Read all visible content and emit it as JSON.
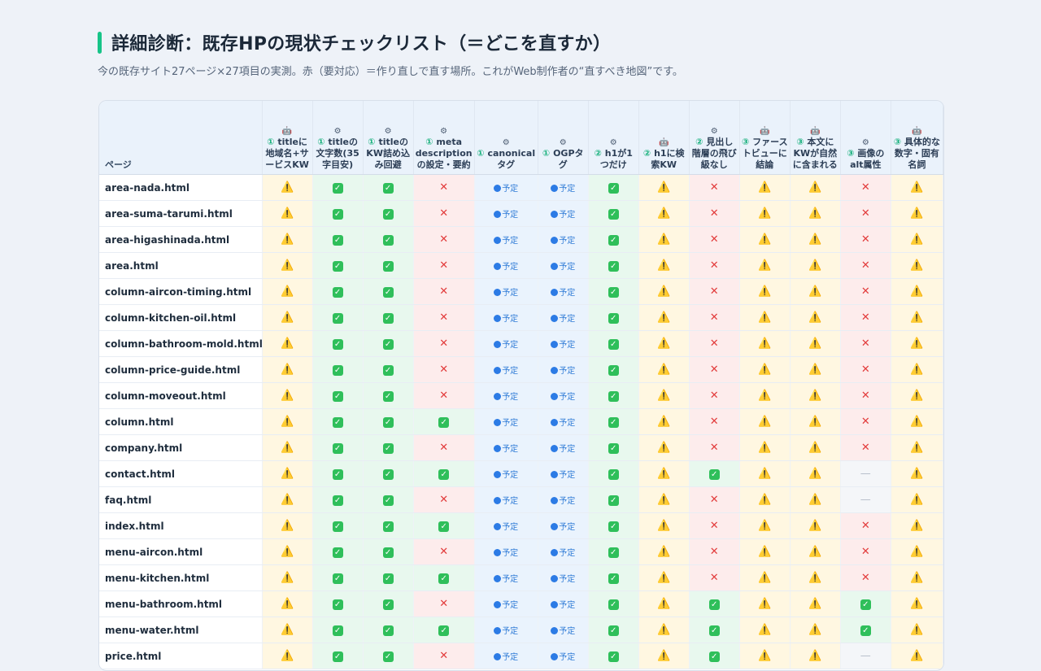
{
  "title": "詳細診断：既存HPの現状チェックリスト（＝どこを直すか）",
  "subtitle": "今の既存サイト27ページ×27項目の実測。赤（要対応）＝作り直しで直す場所。これがWeb制作者の“直すべき地図”です。",
  "table": {
    "page_header": "ページ",
    "columns": [
      {
        "icon": "🤖",
        "num": "①",
        "label": "titleに地域名+サービスKW"
      },
      {
        "icon": "⚙",
        "num": "①",
        "label": "titleの文字数(35字目安)"
      },
      {
        "icon": "⚙",
        "num": "①",
        "label": "titleのKW詰め込み回避"
      },
      {
        "icon": "⚙",
        "num": "①",
        "label": "meta descriptionの設定・要約"
      },
      {
        "icon": "⚙",
        "num": "①",
        "label": "canonicalタグ"
      },
      {
        "icon": "⚙",
        "num": "①",
        "label": "OGPタグ"
      },
      {
        "icon": "⚙",
        "num": "②",
        "label": "h1が1つだけ"
      },
      {
        "icon": "🤖",
        "num": "②",
        "label": "h1に検索KW"
      },
      {
        "icon": "⚙",
        "num": "②",
        "label": "見出し階層の飛び級なし"
      },
      {
        "icon": "🤖",
        "num": "③",
        "label": "ファーストビューに結論"
      },
      {
        "icon": "🤖",
        "num": "③",
        "label": "本文にKWが自然に含まれる"
      },
      {
        "icon": "⚙",
        "num": "③",
        "label": "画像のalt属性"
      },
      {
        "icon": "🤖",
        "num": "③",
        "label": "具体的な数字・固有名詞"
      }
    ],
    "status_symbols": {
      "warn": "⚠️",
      "ok": "✓",
      "ng": "✕",
      "plan": "予定",
      "na": "—"
    },
    "rows": [
      {
        "page": "area-nada.html",
        "s": [
          "warn",
          "ok",
          "ok",
          "ng",
          "plan",
          "plan",
          "ok",
          "warn",
          "ng",
          "warn",
          "warn",
          "ng",
          "warn"
        ]
      },
      {
        "page": "area-suma-tarumi.html",
        "s": [
          "warn",
          "ok",
          "ok",
          "ng",
          "plan",
          "plan",
          "ok",
          "warn",
          "ng",
          "warn",
          "warn",
          "ng",
          "warn"
        ]
      },
      {
        "page": "area-higashinada.html",
        "s": [
          "warn",
          "ok",
          "ok",
          "ng",
          "plan",
          "plan",
          "ok",
          "warn",
          "ng",
          "warn",
          "warn",
          "ng",
          "warn"
        ]
      },
      {
        "page": "area.html",
        "s": [
          "warn",
          "ok",
          "ok",
          "ng",
          "plan",
          "plan",
          "ok",
          "warn",
          "ng",
          "warn",
          "warn",
          "ng",
          "warn"
        ]
      },
      {
        "page": "column-aircon-timing.html",
        "s": [
          "warn",
          "ok",
          "ok",
          "ng",
          "plan",
          "plan",
          "ok",
          "warn",
          "ng",
          "warn",
          "warn",
          "ng",
          "warn"
        ]
      },
      {
        "page": "column-kitchen-oil.html",
        "s": [
          "warn",
          "ok",
          "ok",
          "ng",
          "plan",
          "plan",
          "ok",
          "warn",
          "ng",
          "warn",
          "warn",
          "ng",
          "warn"
        ]
      },
      {
        "page": "column-bathroom-mold.html",
        "s": [
          "warn",
          "ok",
          "ok",
          "ng",
          "plan",
          "plan",
          "ok",
          "warn",
          "ng",
          "warn",
          "warn",
          "ng",
          "warn"
        ]
      },
      {
        "page": "column-price-guide.html",
        "s": [
          "warn",
          "ok",
          "ok",
          "ng",
          "plan",
          "plan",
          "ok",
          "warn",
          "ng",
          "warn",
          "warn",
          "ng",
          "warn"
        ]
      },
      {
        "page": "column-moveout.html",
        "s": [
          "warn",
          "ok",
          "ok",
          "ng",
          "plan",
          "plan",
          "ok",
          "warn",
          "ng",
          "warn",
          "warn",
          "ng",
          "warn"
        ]
      },
      {
        "page": "column.html",
        "s": [
          "warn",
          "ok",
          "ok",
          "ok",
          "plan",
          "plan",
          "ok",
          "warn",
          "ng",
          "warn",
          "warn",
          "ng",
          "warn"
        ]
      },
      {
        "page": "company.html",
        "s": [
          "warn",
          "ok",
          "ok",
          "ng",
          "plan",
          "plan",
          "ok",
          "warn",
          "ng",
          "warn",
          "warn",
          "ng",
          "warn"
        ]
      },
      {
        "page": "contact.html",
        "s": [
          "warn",
          "ok",
          "ok",
          "ok",
          "plan",
          "plan",
          "ok",
          "warn",
          "ok",
          "warn",
          "warn",
          "na",
          "warn"
        ]
      },
      {
        "page": "faq.html",
        "s": [
          "warn",
          "ok",
          "ok",
          "ng",
          "plan",
          "plan",
          "ok",
          "warn",
          "ng",
          "warn",
          "warn",
          "na",
          "warn"
        ]
      },
      {
        "page": "index.html",
        "s": [
          "warn",
          "ok",
          "ok",
          "ok",
          "plan",
          "plan",
          "ok",
          "warn",
          "ng",
          "warn",
          "warn",
          "ng",
          "warn"
        ]
      },
      {
        "page": "menu-aircon.html",
        "s": [
          "warn",
          "ok",
          "ok",
          "ng",
          "plan",
          "plan",
          "ok",
          "warn",
          "ng",
          "warn",
          "warn",
          "ng",
          "warn"
        ]
      },
      {
        "page": "menu-kitchen.html",
        "s": [
          "warn",
          "ok",
          "ok",
          "ok",
          "plan",
          "plan",
          "ok",
          "warn",
          "ng",
          "warn",
          "warn",
          "ng",
          "warn"
        ]
      },
      {
        "page": "menu-bathroom.html",
        "s": [
          "warn",
          "ok",
          "ok",
          "ng",
          "plan",
          "plan",
          "ok",
          "warn",
          "ok",
          "warn",
          "warn",
          "ok",
          "warn"
        ]
      },
      {
        "page": "menu-water.html",
        "s": [
          "warn",
          "ok",
          "ok",
          "ok",
          "plan",
          "plan",
          "ok",
          "warn",
          "ok",
          "warn",
          "warn",
          "ok",
          "warn"
        ]
      },
      {
        "page": "price.html",
        "s": [
          "warn",
          "ok",
          "ok",
          "ng",
          "plan",
          "plan",
          "ok",
          "warn",
          "ok",
          "warn",
          "warn",
          "na",
          "warn"
        ]
      }
    ]
  }
}
